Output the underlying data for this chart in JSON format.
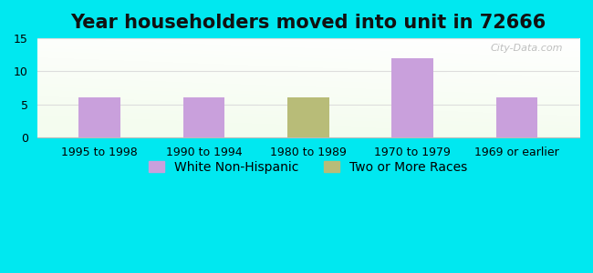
{
  "title": "Year householders moved into unit in 72666",
  "categories": [
    "1995 to 1998",
    "1990 to 1994",
    "1980 to 1989",
    "1970 to 1979",
    "1969 or earlier"
  ],
  "series": [
    {
      "name": "White Non-Hispanic",
      "values": [
        6,
        6,
        0,
        12,
        6
      ],
      "color": "#c9a0dc"
    },
    {
      "name": "Two or More Races",
      "values": [
        0,
        0,
        6,
        0,
        0
      ],
      "color": "#b8bc78"
    }
  ],
  "ylim": [
    0,
    15
  ],
  "yticks": [
    0,
    5,
    10,
    15
  ],
  "background_color": "#00e8f0",
  "title_fontsize": 15,
  "tick_fontsize": 9,
  "legend_fontsize": 10,
  "bar_width": 0.4,
  "watermark": "City-Data.com"
}
